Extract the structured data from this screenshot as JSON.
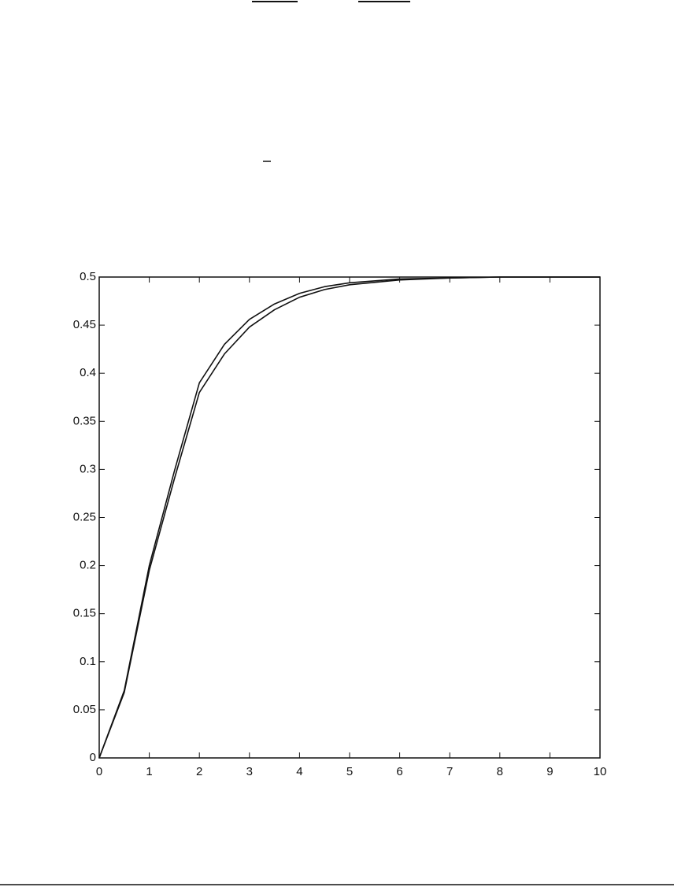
{
  "chart_data": {
    "type": "line",
    "x": [
      0,
      0.5,
      1,
      1.5,
      2,
      2.5,
      3,
      3.5,
      4,
      4.5,
      5,
      6,
      7,
      8,
      9,
      10
    ],
    "series": [
      {
        "color": "#111111",
        "values": [
          0,
          0.07,
          0.2,
          0.298,
          0.39,
          0.43,
          0.456,
          0.472,
          0.483,
          0.49,
          0.494,
          0.498,
          0.499,
          0.5,
          0.5,
          0.5
        ]
      },
      {
        "color": "#111111",
        "values": [
          0,
          0.068,
          0.195,
          0.29,
          0.38,
          0.42,
          0.448,
          0.466,
          0.479,
          0.487,
          0.492,
          0.497,
          0.499,
          0.5,
          0.5,
          0.5
        ]
      }
    ],
    "xlim": [
      0,
      10
    ],
    "xticks": [
      0,
      1,
      2,
      3,
      4,
      5,
      6,
      7,
      8,
      9,
      10
    ],
    "ylim": [
      0,
      0.5
    ],
    "yticks": [
      0,
      0.05,
      0.1,
      0.15,
      0.2,
      0.25,
      0.3,
      0.35,
      0.4,
      0.45,
      0.5
    ],
    "grid": false
  }
}
